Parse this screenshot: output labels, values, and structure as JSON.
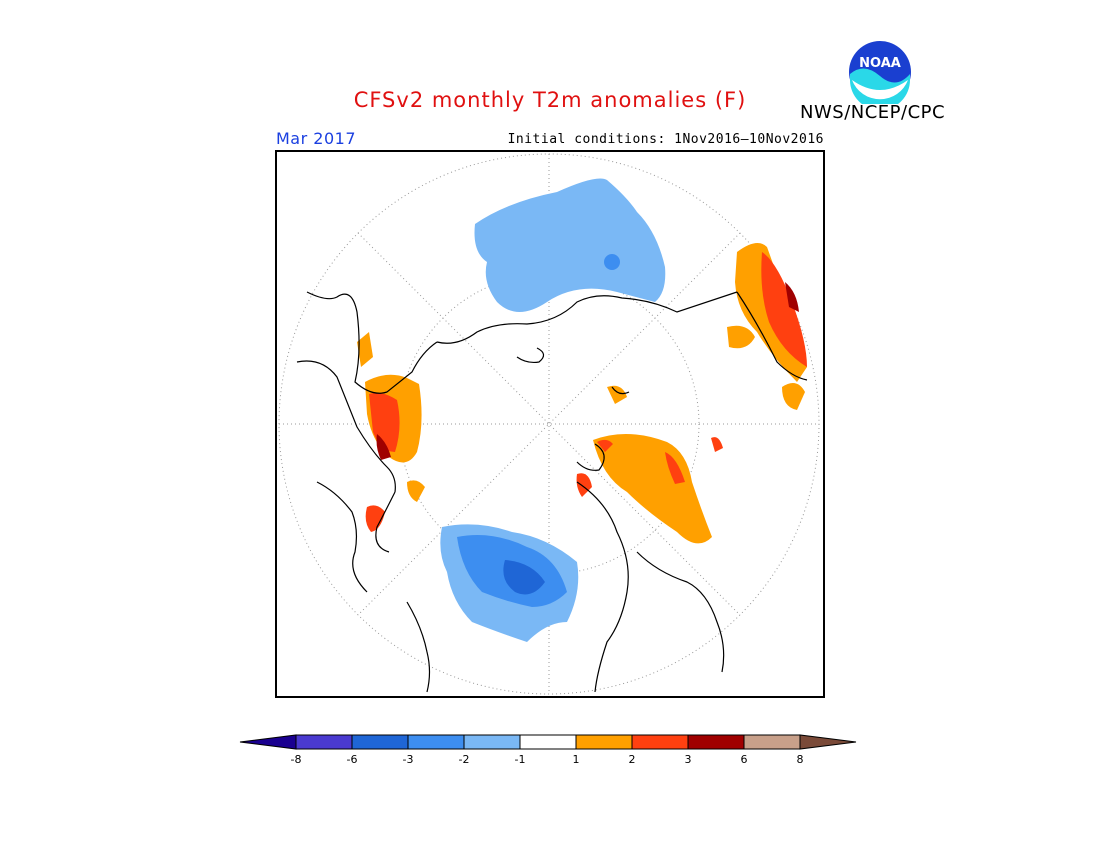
{
  "header": {
    "title": "CFSv2 monthly T2m anomalies (F)",
    "period": "Mar 2017",
    "initial_conditions": "Initial conditions: 1Nov2016–10Nov2016",
    "agency": "NWS/NCEP/CPC",
    "logo_text": "NOAA"
  },
  "map": {
    "projection": "north-polar-stereographic",
    "variable": "2m temperature anomaly",
    "units": "F"
  },
  "legend": {
    "labels": [
      "-8",
      "-6",
      "-3",
      "-2",
      "-1",
      "1",
      "2",
      "3",
      "6",
      "8"
    ],
    "colors": [
      "#1a0090",
      "#4a3ad0",
      "#1f66d6",
      "#3d8ef0",
      "#7ab8f5",
      "#ffffff",
      "#ffa000",
      "#ff4010",
      "#a00000",
      "#c8a08a",
      "#7a4a38"
    ]
  }
}
